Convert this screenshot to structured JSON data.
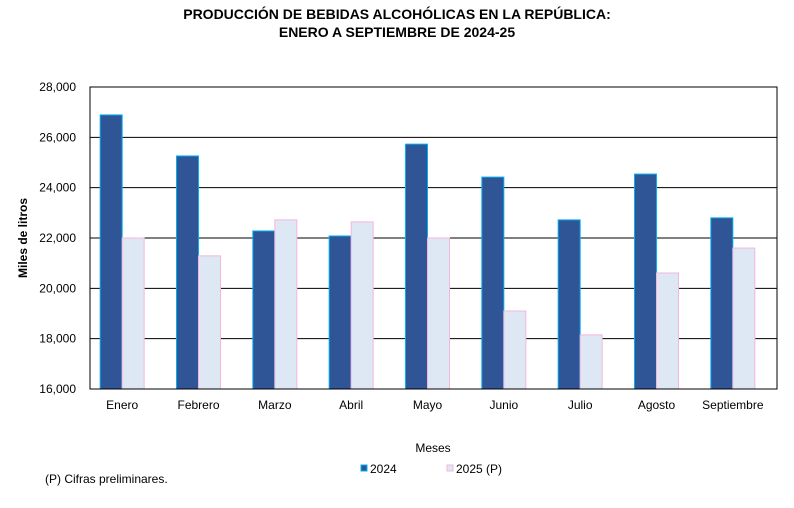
{
  "chart_data": {
    "type": "bar",
    "title": [
      "PRODUCCIÓN DE BEBIDAS ALCOHÓLICAS EN LA REPÚBLICA:",
      "ENERO A   SEPTIEMBRE DE 2024-25"
    ],
    "xlabel": "Meses",
    "ylabel": "Miles de litros",
    "ylim": [
      16000,
      28000
    ],
    "yticks": [
      "16,000",
      "18,000",
      "20,000",
      "22,000",
      "24,000",
      "26,000",
      "28,000"
    ],
    "grid": true,
    "legend_position": "bottom",
    "categories": [
      "Enero",
      "Febrero",
      "Marzo",
      "Abril",
      "Mayo",
      "Junio",
      "Julio",
      "Agosto",
      "Septiembre"
    ],
    "series": [
      {
        "name": "2024",
        "color": "#2F5597",
        "border": "#00B0F0",
        "values": [
          26890,
          25260,
          22280,
          22080,
          25730,
          24420,
          22720,
          24540,
          22800
        ]
      },
      {
        "name": "2025 (P)",
        "color": "#DEE8F4",
        "border": "#F4B6DC",
        "values": [
          22000,
          21290,
          22720,
          22640,
          22000,
          19100,
          18150,
          20610,
          21600
        ]
      }
    ],
    "footnote": "(P) Cifras  preliminares."
  }
}
